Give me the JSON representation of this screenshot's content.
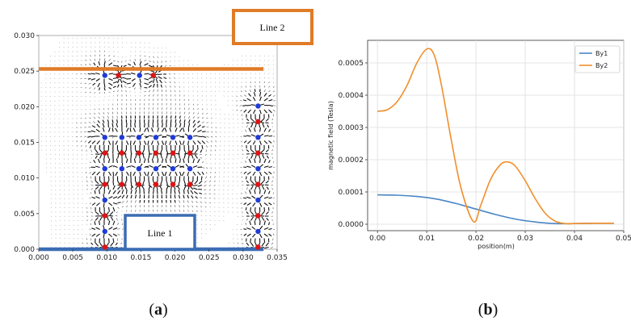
{
  "captions": {
    "a_open": "(",
    "a_letter": "a",
    "a_close": ")",
    "b_open": "(",
    "b_letter": "b",
    "b_close": ")"
  },
  "chart_data": [
    {
      "type": "scatter",
      "panel": "a",
      "xlim": [
        0.0,
        0.035
      ],
      "ylim": [
        0.0,
        0.03
      ],
      "x_ticks": [
        "0.000",
        "0.005",
        "0.010",
        "0.015",
        "0.020",
        "0.025",
        "0.030",
        "0.035"
      ],
      "y_ticks": [
        "0.000",
        "0.005",
        "0.010",
        "0.015",
        "0.020",
        "0.025",
        "0.030"
      ],
      "annotations": [
        {
          "label": "Line 1",
          "color": "#3b6db3"
        },
        {
          "label": "Line 2",
          "color": "#e07b27"
        }
      ],
      "lines": [
        {
          "name": "Line 1",
          "y": 0.0,
          "x_range": [
            0.0,
            0.033
          ],
          "color": "#3b6db3"
        },
        {
          "name": "Line 2",
          "y": 0.0253,
          "x_range": [
            0.0,
            0.033
          ],
          "color": "#e07b27"
        }
      ],
      "dots": [
        {
          "x": 0.0097,
          "y": 0.0244,
          "c": "blue"
        },
        {
          "x": 0.0117,
          "y": 0.0244,
          "c": "red"
        },
        {
          "x": 0.0148,
          "y": 0.0244,
          "c": "blue"
        },
        {
          "x": 0.0168,
          "y": 0.0244,
          "c": "red"
        },
        {
          "x": 0.0097,
          "y": 0.0157,
          "c": "blue"
        },
        {
          "x": 0.0097,
          "y": 0.0135,
          "c": "red"
        },
        {
          "x": 0.0097,
          "y": 0.0113,
          "c": "blue"
        },
        {
          "x": 0.0097,
          "y": 0.0091,
          "c": "red"
        },
        {
          "x": 0.0097,
          "y": 0.0069,
          "c": "blue"
        },
        {
          "x": 0.0097,
          "y": 0.0047,
          "c": "red"
        },
        {
          "x": 0.0097,
          "y": 0.0025,
          "c": "blue"
        },
        {
          "x": 0.0097,
          "y": 0.0003,
          "c": "red"
        },
        {
          "x": 0.0122,
          "y": 0.0157,
          "c": "blue"
        },
        {
          "x": 0.0122,
          "y": 0.0135,
          "c": "red"
        },
        {
          "x": 0.0122,
          "y": 0.0113,
          "c": "blue"
        },
        {
          "x": 0.0122,
          "y": 0.0091,
          "c": "red"
        },
        {
          "x": 0.0147,
          "y": 0.0157,
          "c": "blue"
        },
        {
          "x": 0.0147,
          "y": 0.0135,
          "c": "red"
        },
        {
          "x": 0.0147,
          "y": 0.0113,
          "c": "blue"
        },
        {
          "x": 0.0147,
          "y": 0.0091,
          "c": "red"
        },
        {
          "x": 0.0172,
          "y": 0.0157,
          "c": "blue"
        },
        {
          "x": 0.0172,
          "y": 0.0135,
          "c": "red"
        },
        {
          "x": 0.0172,
          "y": 0.0113,
          "c": "blue"
        },
        {
          "x": 0.0172,
          "y": 0.0091,
          "c": "red"
        },
        {
          "x": 0.0197,
          "y": 0.0157,
          "c": "blue"
        },
        {
          "x": 0.0197,
          "y": 0.0135,
          "c": "red"
        },
        {
          "x": 0.0197,
          "y": 0.0113,
          "c": "blue"
        },
        {
          "x": 0.0197,
          "y": 0.0091,
          "c": "red"
        },
        {
          "x": 0.0222,
          "y": 0.0157,
          "c": "blue"
        },
        {
          "x": 0.0222,
          "y": 0.0135,
          "c": "red"
        },
        {
          "x": 0.0222,
          "y": 0.0113,
          "c": "blue"
        },
        {
          "x": 0.0222,
          "y": 0.0091,
          "c": "red"
        },
        {
          "x": 0.0322,
          "y": 0.0201,
          "c": "blue"
        },
        {
          "x": 0.0322,
          "y": 0.0179,
          "c": "red"
        },
        {
          "x": 0.0322,
          "y": 0.0157,
          "c": "blue"
        },
        {
          "x": 0.0322,
          "y": 0.0135,
          "c": "red"
        },
        {
          "x": 0.0322,
          "y": 0.0113,
          "c": "blue"
        },
        {
          "x": 0.0322,
          "y": 0.0091,
          "c": "red"
        },
        {
          "x": 0.0322,
          "y": 0.0069,
          "c": "blue"
        },
        {
          "x": 0.0322,
          "y": 0.0047,
          "c": "red"
        },
        {
          "x": 0.0322,
          "y": 0.0025,
          "c": "blue"
        },
        {
          "x": 0.0322,
          "y": 0.0003,
          "c": "red"
        }
      ],
      "dot_colors": {
        "blue": "#1f3bd6",
        "red": "#e01414"
      }
    },
    {
      "type": "line",
      "panel": "b",
      "xlabel": "position(m)",
      "ylabel": "magnetic field (Tesla)",
      "xlim": [
        -0.002,
        0.05
      ],
      "ylim": [
        -2e-05,
        0.00057
      ],
      "grid": true,
      "legend_position": "top-right",
      "x_ticks": [
        0.0,
        0.01,
        0.02,
        0.03,
        0.04,
        0.05
      ],
      "x_tick_labels": [
        "0.00",
        "0.01",
        "0.02",
        "0.03",
        "0.04",
        "0.05"
      ],
      "y_ticks": [
        0.0,
        0.0001,
        0.0002,
        0.0003,
        0.0004,
        0.0005
      ],
      "y_tick_labels": [
        "0.0000",
        "0.0001",
        "0.0002",
        "0.0003",
        "0.0004",
        "0.0005"
      ],
      "series": [
        {
          "name": "By1",
          "color": "#4a86c5",
          "x": [
            0.0,
            0.004,
            0.008,
            0.012,
            0.016,
            0.02,
            0.024,
            0.028,
            0.032,
            0.036,
            0.04,
            0.044,
            0.048
          ],
          "y": [
            9.1e-05,
            9e-05,
            8.6e-05,
            7.8e-05,
            6.4e-05,
            4.7e-05,
            3e-05,
            1.6e-05,
            7e-06,
            2e-06,
            2e-06,
            3e-06,
            3e-06
          ]
        },
        {
          "name": "By2",
          "color": "#f28e2b",
          "x": [
            0.0,
            0.002,
            0.004,
            0.006,
            0.008,
            0.01,
            0.0115,
            0.013,
            0.015,
            0.017,
            0.0195,
            0.021,
            0.023,
            0.025,
            0.0265,
            0.028,
            0.03,
            0.032,
            0.034,
            0.036,
            0.038,
            0.04,
            0.044,
            0.048
          ],
          "y": [
            0.00035,
            0.000355,
            0.00038,
            0.00043,
            0.0005,
            0.000543,
            0.000525,
            0.00043,
            0.00026,
            0.00011,
            8e-06,
            6e-05,
            0.00014,
            0.000185,
            0.000193,
            0.00018,
            0.000135,
            8e-05,
            3.5e-05,
            1e-05,
            2e-06,
            2e-06,
            3e-06,
            3e-06
          ]
        }
      ]
    }
  ]
}
